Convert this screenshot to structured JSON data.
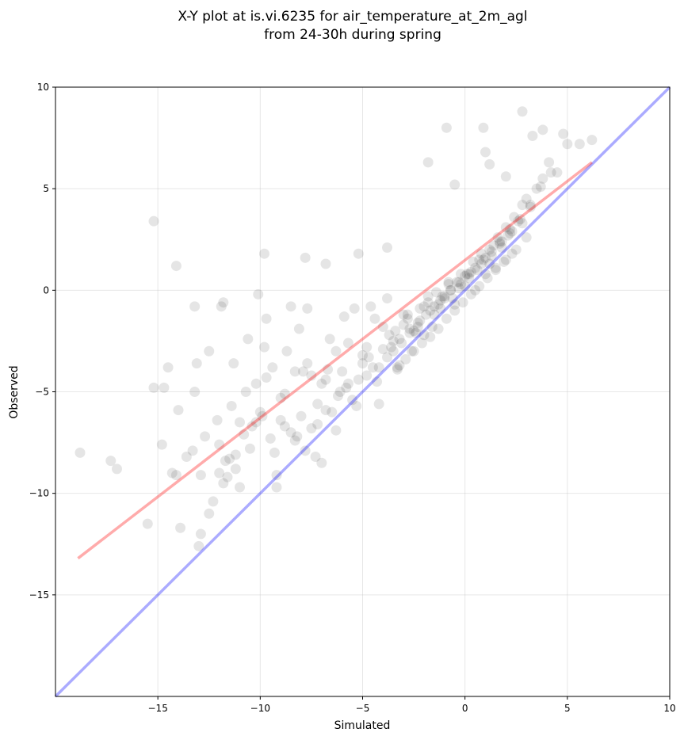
{
  "chart_data": {
    "type": "scatter",
    "title_line1": "X-Y plot at is.vi.6235 for air_temperature_at_2m_agl",
    "title_line2": "from 24-30h during spring",
    "xlabel": "Simulated",
    "ylabel": "Observed",
    "xlim": [
      -20,
      10
    ],
    "ylim": [
      -20,
      10
    ],
    "xticks": [
      {
        "value": -15,
        "label": "−15"
      },
      {
        "value": -10,
        "label": "−10"
      },
      {
        "value": -5,
        "label": "−5"
      },
      {
        "value": 0,
        "label": "0"
      },
      {
        "value": 5,
        "label": "5"
      },
      {
        "value": 10,
        "label": "10"
      }
    ],
    "yticks": [
      {
        "value": -15,
        "label": "−15"
      },
      {
        "value": -10,
        "label": "−10"
      },
      {
        "value": -5,
        "label": "−5"
      },
      {
        "value": 0,
        "label": "0"
      },
      {
        "value": 5,
        "label": "5"
      },
      {
        "value": 10,
        "label": "10"
      }
    ],
    "grid": true,
    "point_color": "#000000",
    "point_alpha": 0.1,
    "fit_line": {
      "color": "#ff0000",
      "alpha": 0.33,
      "x": [
        -18.9,
        6.2
      ],
      "y": [
        -13.2,
        6.3
      ]
    },
    "identity_line": {
      "color": "#0000ff",
      "alpha": 0.33,
      "x": [
        -20,
        10
      ],
      "y": [
        -20,
        10
      ]
    },
    "points": {
      "x": [
        -18.8,
        -17.3,
        -17.0,
        -15.5,
        -15.2,
        -14.8,
        -14.7,
        -14.5,
        -14.3,
        -14.1,
        -14.0,
        -13.9,
        -13.6,
        -13.3,
        -13.2,
        -13.1,
        -13.0,
        -12.9,
        -12.9,
        -12.7,
        -12.5,
        -12.3,
        -12.1,
        -12.0,
        -11.9,
        -11.8,
        -11.7,
        -11.6,
        -11.4,
        -11.3,
        -11.2,
        -11.0,
        -10.8,
        -10.6,
        -10.4,
        -10.2,
        -10.1,
        -9.9,
        -9.7,
        -9.4,
        -9.2,
        -9.0,
        -8.8,
        -8.5,
        -8.3,
        -8.1,
        -7.9,
        -7.7,
        -7.5,
        -7.2,
        -7.0,
        -6.8,
        -6.6,
        -6.3,
        -6.1,
        -5.9,
        -5.7,
        -5.4,
        -5.2,
        -5.0,
        -4.8,
        -4.6,
        -4.4,
        -4.2,
        -4.0,
        -3.8,
        -3.6,
        -3.4,
        -3.2,
        -3.0,
        -2.8,
        -2.6,
        -2.4,
        -2.2,
        -2.0,
        -1.8,
        -1.6,
        -1.4,
        -1.2,
        -1.0,
        -0.8,
        -0.6,
        -0.4,
        -0.2,
        0.0,
        0.2,
        0.4,
        0.6,
        0.8,
        1.0,
        1.2,
        1.4,
        1.6,
        1.8,
        2.0,
        2.2,
        2.4,
        2.6,
        2.8,
        3.0,
        3.2,
        3.5,
        3.8,
        4.1,
        4.5,
        5.0,
        6.2,
        -12.5,
        -12.0,
        -11.5,
        -11.0,
        -10.5,
        -10.0,
        -9.5,
        -9.0,
        -8.5,
        -8.0,
        -7.5,
        -7.0,
        -6.5,
        -6.0,
        -5.5,
        -5.0,
        -4.5,
        -4.0,
        -3.5,
        -3.0,
        -2.5,
        -2.0,
        -1.5,
        -1.0,
        -0.5,
        0.0,
        0.5,
        1.0,
        1.5,
        2.0,
        2.5,
        3.0,
        -9.8,
        -9.3,
        -8.8,
        -8.3,
        -7.8,
        -7.3,
        -6.8,
        -6.3,
        -5.8,
        -5.3,
        -4.8,
        -4.3,
        -3.8,
        -3.3,
        -2.8,
        -2.3,
        -1.8,
        -1.3,
        -0.8,
        -0.3,
        0.2,
        0.7,
        1.2,
        1.7,
        2.2,
        2.7,
        3.2,
        3.7,
        4.2,
        -11.2,
        -10.7,
        -10.2,
        -9.7,
        -9.2,
        -8.7,
        -8.2,
        -7.7,
        -7.2,
        -6.7,
        -6.2,
        -5.7,
        -5.2,
        -4.7,
        -4.2,
        -3.7,
        -3.2,
        -2.7,
        -2.2,
        -1.7,
        -1.2,
        -0.7,
        -0.2,
        0.3,
        0.8,
        1.3,
        1.8,
        2.3,
        2.8,
        -3.5,
        -3.1,
        -2.7,
        -2.3,
        -1.9,
        -1.5,
        -1.1,
        -0.7,
        -0.3,
        0.1,
        0.5,
        0.9,
        1.3,
        1.7,
        2.1,
        -3.3,
        -2.9,
        -2.5,
        -2.1,
        -1.7,
        -1.3,
        -0.9,
        -0.5,
        -0.1,
        0.3,
        0.7,
        1.1,
        1.5,
        1.9,
        2.3,
        -0.9,
        0.9,
        1.0,
        1.2,
        2.0,
        2.8,
        3.3,
        3.8,
        4.8,
        5.6,
        -1.8,
        -0.5,
        -3.8,
        -6.8,
        -7.8,
        -9.8,
        -11.8,
        -13.2,
        -14.1,
        -15.2
      ],
      "y": [
        -8.0,
        -8.4,
        -8.8,
        -11.5,
        -4.8,
        -7.6,
        -4.8,
        -3.8,
        -9.0,
        -9.1,
        -5.9,
        -11.7,
        -8.2,
        -7.9,
        -5.0,
        -3.6,
        -12.6,
        -12.0,
        -9.1,
        -7.2,
        -3.0,
        -10.4,
        -6.4,
        -7.6,
        -0.8,
        -9.5,
        -8.4,
        -9.2,
        -5.7,
        -3.6,
        -8.1,
        -9.7,
        -7.1,
        -2.4,
        -6.7,
        -4.6,
        -0.2,
        -6.2,
        -1.4,
        -3.8,
        -9.7,
        -6.4,
        -5.1,
        -0.8,
        -7.4,
        -1.9,
        -4.0,
        -0.9,
        -4.2,
        -5.6,
        -8.5,
        -4.4,
        -2.4,
        -3.0,
        -5.0,
        -1.3,
        -4.6,
        -0.9,
        1.8,
        -3.6,
        -4.2,
        -0.8,
        -1.4,
        -5.6,
        -1.8,
        -0.4,
        -2.8,
        -2.0,
        -3.7,
        -1.2,
        -1.4,
        -3.0,
        -2.1,
        -0.9,
        -2.2,
        -0.6,
        -1.8,
        -0.1,
        -0.9,
        -0.4,
        0.3,
        -0.4,
        0.4,
        0.8,
        0.7,
        0.6,
        1.4,
        1.0,
        1.8,
        1.6,
        1.3,
        2.2,
        2.6,
        2.1,
        3.1,
        2.8,
        3.6,
        3.4,
        4.2,
        4.5,
        4.1,
        5.0,
        5.5,
        6.3,
        5.8,
        7.2,
        7.4,
        -11.0,
        -9.0,
        -8.3,
        -6.5,
        -7.8,
        -6.0,
        -7.3,
        -5.3,
        -7.0,
        -6.2,
        -6.8,
        -4.6,
        -6.0,
        -4.0,
        -5.4,
        -3.2,
        -3.8,
        -2.9,
        -2.5,
        -1.7,
        -2.0,
        -0.8,
        -1.2,
        -0.3,
        -0.7,
        0.2,
        0.0,
        0.8,
        1.1,
        1.5,
        2.0,
        2.6,
        -2.8,
        -8.0,
        -6.7,
        -4.0,
        -7.9,
        -8.2,
        -5.9,
        -6.9,
        -4.8,
        -5.7,
        -2.8,
        -4.5,
        -3.3,
        -3.9,
        -1.2,
        -1.8,
        -0.3,
        -0.7,
        0.4,
        0.1,
        0.8,
        1.5,
        2.0,
        2.4,
        3.0,
        3.5,
        4.2,
        5.1,
        5.8,
        -8.8,
        -5.0,
        -6.5,
        -4.3,
        -9.1,
        -3.0,
        -7.2,
        -3.6,
        -6.6,
        -3.9,
        -5.2,
        -2.6,
        -4.4,
        -3.3,
        -3.8,
        -2.2,
        -2.4,
        -1.9,
        -1.5,
        -1.0,
        -0.5,
        0.0,
        0.3,
        0.9,
        1.3,
        1.7,
        2.4,
        2.9,
        3.3,
        -3.0,
        -2.6,
        -2.1,
        -1.6,
        -1.2,
        -0.8,
        -0.3,
        0.0,
        0.4,
        0.8,
        1.1,
        1.5,
        1.9,
        2.3,
        2.7,
        -3.8,
        -3.4,
        -3.0,
        -2.6,
        -2.3,
        -1.9,
        -1.4,
        -1.0,
        -0.6,
        -0.2,
        0.2,
        0.6,
        1.0,
        1.4,
        1.8,
        8.0,
        8.0,
        6.8,
        6.2,
        5.6,
        8.8,
        7.6,
        7.9,
        7.7,
        7.2,
        6.3,
        5.2,
        2.1,
        1.3,
        1.6,
        1.8,
        -0.6,
        -0.8,
        1.2,
        3.4
      ]
    }
  }
}
